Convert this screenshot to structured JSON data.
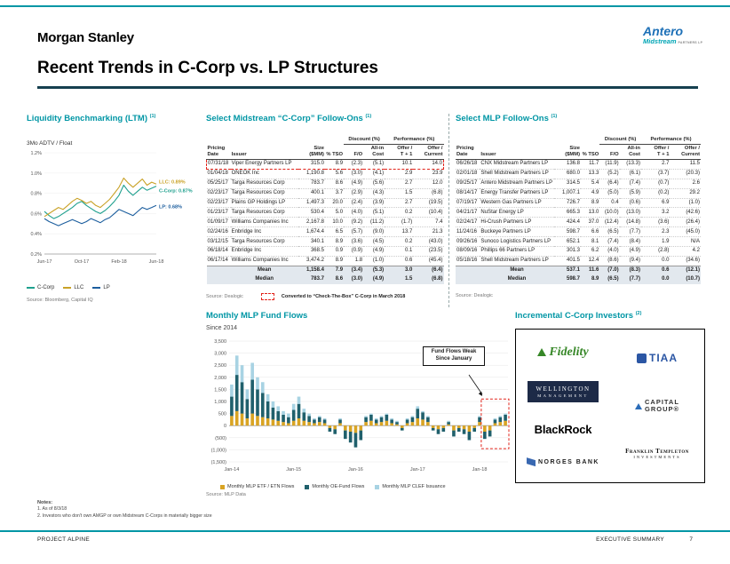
{
  "page": {
    "brand": "Morgan Stanley",
    "logo": {
      "name": "Antero",
      "sub": "Midstream",
      "sub2": "PARTNERS LP"
    },
    "title": "Recent Trends in C-Corp vs. LP Structures",
    "notes": {
      "heading": "Notes:",
      "items": [
        "1.   As of 8/3/18",
        "2.   Investors who don't own AMGP or own Midstream C-Corps in materially bigger size"
      ]
    },
    "footer": {
      "left": "PROJECT ALPINE",
      "right": "EXECUTIVE SUMMARY",
      "page_number": "7"
    }
  },
  "liquidity": {
    "title": "Liquidity Benchmarking (LTM)",
    "title_sup": "(1)",
    "subtitle": "3Mo ADTV / Float",
    "source": "Source: Bloomberg, Capital IQ",
    "chart_data": {
      "type": "line",
      "ylabel": "3Mo ADTV / Float",
      "ylim": [
        0.2,
        1.2
      ],
      "yticks": [
        {
          "value": 1.2,
          "label": "1.2%"
        },
        {
          "value": 1.0,
          "label": "1.0%"
        },
        {
          "value": 0.8,
          "label": "0.8%"
        },
        {
          "value": 0.6,
          "label": "0.6%"
        },
        {
          "value": 0.4,
          "label": "0.4%"
        },
        {
          "value": 0.2,
          "label": "0.2%"
        }
      ],
      "xticks": [
        {
          "pos": 0,
          "label": "Jun-17"
        },
        {
          "pos": 0.333,
          "label": "Oct-17"
        },
        {
          "pos": 0.667,
          "label": "Feb-18"
        },
        {
          "pos": 1,
          "label": "Jun-18"
        }
      ],
      "series": [
        {
          "name": "C-Corp",
          "color": "#1FA08E",
          "values": [
            0.62,
            0.58,
            0.55,
            0.57,
            0.6,
            0.63,
            0.66,
            0.7,
            0.72,
            0.68,
            0.65,
            0.62,
            0.6,
            0.63,
            0.67,
            0.72,
            0.78,
            0.88,
            0.82,
            0.78,
            0.82,
            0.86,
            0.83,
            0.85,
            0.87
          ]
        },
        {
          "name": "LLC",
          "color": "#C9A227",
          "values": [
            0.57,
            0.6,
            0.63,
            0.66,
            0.64,
            0.68,
            0.72,
            0.75,
            0.73,
            0.7,
            0.72,
            0.68,
            0.66,
            0.7,
            0.74,
            0.8,
            0.86,
            0.95,
            0.9,
            0.86,
            0.9,
            0.94,
            0.88,
            0.91,
            0.89
          ]
        },
        {
          "name": "LP",
          "color": "#1C5E9E",
          "values": [
            0.55,
            0.52,
            0.5,
            0.48,
            0.5,
            0.52,
            0.54,
            0.52,
            0.5,
            0.52,
            0.55,
            0.53,
            0.51,
            0.54,
            0.56,
            0.6,
            0.64,
            0.62,
            0.6,
            0.58,
            0.62,
            0.66,
            0.64,
            0.66,
            0.68
          ]
        }
      ],
      "end_labels": [
        {
          "text": "LLC: 0.89%",
          "value": 0.89,
          "dy": -1,
          "color": "#C9A227"
        },
        {
          "text": "C-Corp: 0.87%",
          "value": 0.87,
          "dy": 7,
          "color": "#1FA08E"
        },
        {
          "text": "LP: 0.68%",
          "value": 0.68,
          "dy": 3,
          "color": "#1C5E9E"
        }
      ]
    }
  },
  "ccorp_table": {
    "title": "Select Midstream “C-Corp” Follow-Ons",
    "title_sup": "(1)",
    "group_headers": [
      "Discount (%)",
      "Performance (%)"
    ],
    "columns": [
      "Pricing\nDate",
      "Issuer",
      "Size\n($MM)",
      "% TSO",
      "F/O",
      "All-in\nCost",
      "Offer /\nT + 1",
      "Offer /\nCurrent"
    ],
    "rows": [
      {
        "highlight": true,
        "cells": [
          "07/31/18",
          "Viper Energy Partners LP",
          "315.0",
          "8.9",
          "(2.3)",
          "(5.1)",
          "10.1",
          "14.0"
        ]
      },
      {
        "cells": [
          "01/04/18",
          "ONEOK Inc",
          "1,190.8",
          "5.6",
          "(3.0)",
          "(4.1)",
          "2.9",
          "23.9"
        ]
      },
      {
        "cells": [
          "05/25/17",
          "Targa Resources Corp",
          "783.7",
          "8.6",
          "(4.9)",
          "(5.6)",
          "2.7",
          "12.0"
        ]
      },
      {
        "cells": [
          "02/23/17",
          "Targa Resources Corp",
          "400.1",
          "3.7",
          "(2.9)",
          "(4.3)",
          "1.5",
          "(6.8)"
        ]
      },
      {
        "cells": [
          "02/23/17",
          "Plains GP Holdings LP",
          "1,497.3",
          "20.0",
          "(2.4)",
          "(3.9)",
          "2.7",
          "(19.5)"
        ]
      },
      {
        "cells": [
          "01/23/17",
          "Targa Resources Corp",
          "530.4",
          "5.0",
          "(4.0)",
          "(5.1)",
          "0.2",
          "(10.4)"
        ]
      },
      {
        "cells": [
          "01/09/17",
          "Williams Companies Inc",
          "2,167.8",
          "10.0",
          "(9.2)",
          "(11.2)",
          "(1.7)",
          "7.4"
        ]
      },
      {
        "cells": [
          "02/24/16",
          "Enbridge Inc",
          "1,674.4",
          "6.5",
          "(5.7)",
          "(9.0)",
          "13.7",
          "21.3"
        ]
      },
      {
        "cells": [
          "03/12/15",
          "Targa Resources Corp",
          "340.1",
          "8.9",
          "(3.6)",
          "(4.5)",
          "0.2",
          "(43.0)"
        ]
      },
      {
        "cells": [
          "06/18/14",
          "Enbridge Inc",
          "368.5",
          "0.9",
          "(0.9)",
          "(4.9)",
          "0.1",
          "(23.5)"
        ]
      },
      {
        "cells": [
          "06/17/14",
          "Williams Companies Inc",
          "3,474.2",
          "8.9",
          "1.8",
          "(1.0)",
          "0.6",
          "(45.4)"
        ]
      }
    ],
    "summary": [
      {
        "cells": [
          "",
          "Mean",
          "1,158.4",
          "7.9",
          "(3.4)",
          "(5.3)",
          "3.0",
          "(6.4)"
        ]
      },
      {
        "cells": [
          "",
          "Median",
          "783.7",
          "8.6",
          "(3.0)",
          "(4.9)",
          "1.5",
          "(6.8)"
        ]
      }
    ],
    "source": "Source: Dealogic",
    "callout": "Converted to “Check-The-Box” C-Corp in March 2018"
  },
  "mlp_table": {
    "title": "Select MLP Follow-Ons",
    "title_sup": "(1)",
    "group_headers": [
      "Discount (%)",
      "Performance (%)"
    ],
    "columns": [
      "Pricing\nDate",
      "Issuer",
      "Size\n($MM)",
      "% TSO",
      "F/O",
      "All-in\nCost",
      "Offer /\nT + 1",
      "Offer /\nCurrent"
    ],
    "rows": [
      {
        "cells": [
          "06/26/18",
          "CNX Midstream Partners LP",
          "136.8",
          "11.7",
          "(11.9)",
          "(13.3)",
          "2.7",
          "11.5"
        ]
      },
      {
        "cells": [
          "02/01/18",
          "Shell Midstream Partners LP",
          "680.0",
          "13.3",
          "(5.2)",
          "(6.1)",
          "(3.7)",
          "(20.3)"
        ]
      },
      {
        "cells": [
          "09/25/17",
          "Antero Midstream Partners LP",
          "314.5",
          "5.4",
          "(6.4)",
          "(7.4)",
          "(0.7)",
          "2.6"
        ]
      },
      {
        "cells": [
          "08/14/17",
          "Energy Transfer Partners LP",
          "1,007.1",
          "4.9",
          "(5.0)",
          "(5.9)",
          "(0.2)",
          "29.2"
        ]
      },
      {
        "cells": [
          "07/19/17",
          "Western Gas Partners LP",
          "726.7",
          "8.9",
          "0.4",
          "(0.6)",
          "6.9",
          "(1.0)"
        ]
      },
      {
        "cells": [
          "04/21/17",
          "NuStar Energy LP",
          "665.3",
          "13.0",
          "(10.0)",
          "(13.0)",
          "3.2",
          "(42.6)"
        ]
      },
      {
        "cells": [
          "02/24/17",
          "Hi-Crush Partners LP",
          "424.4",
          "37.0",
          "(12.4)",
          "(14.8)",
          "(3.6)",
          "(26.4)"
        ]
      },
      {
        "cells": [
          "11/24/16",
          "Buckeye Partners LP",
          "598.7",
          "6.6",
          "(6.5)",
          "(7.7)",
          "2.3",
          "(45.0)"
        ]
      },
      {
        "cells": [
          "09/26/16",
          "Sunoco Logistics Partners LP",
          "652.1",
          "8.1",
          "(7.4)",
          "(8.4)",
          "1.9",
          "N/A"
        ]
      },
      {
        "cells": [
          "08/09/16",
          "Phillips 66 Partners LP",
          "301.3",
          "6.2",
          "(4.0)",
          "(4.9)",
          "(2.8)",
          "4.2"
        ]
      },
      {
        "cells": [
          "05/18/16",
          "Shell Midstream Partners LP",
          "401.5",
          "12.4",
          "(8.6)",
          "(9.4)",
          "0.0",
          "(34.6)"
        ]
      }
    ],
    "summary": [
      {
        "cells": [
          "",
          "Mean",
          "537.1",
          "11.6",
          "(7.0)",
          "(8.3)",
          "0.6",
          "(12.1)"
        ]
      },
      {
        "cells": [
          "",
          "Median",
          "598.7",
          "8.9",
          "(6.5)",
          "(7.7)",
          "0.0",
          "(10.7)"
        ]
      }
    ],
    "source": "Source: Dealogic"
  },
  "fund_flows": {
    "title": "Monthly MLP Fund Flows",
    "subtitle": "Since 2014",
    "source": "Source: MLP Data",
    "annotation": "Fund Flows Weak Since January",
    "chart_data": {
      "type": "bar",
      "stacked": true,
      "months": 54,
      "x_start": "Jan-14",
      "ylim": [
        -1500,
        3500
      ],
      "yticks": [
        {
          "value": 3500,
          "label": "3,500"
        },
        {
          "value": 3000,
          "label": "3,000"
        },
        {
          "value": 2500,
          "label": "2,500"
        },
        {
          "value": 2000,
          "label": "2,000"
        },
        {
          "value": 1500,
          "label": "1,500"
        },
        {
          "value": 1000,
          "label": "1,000"
        },
        {
          "value": 500,
          "label": "500"
        },
        {
          "value": 0,
          "label": "0"
        },
        {
          "value": -500,
          "label": "(500)"
        },
        {
          "value": -1000,
          "label": "(1,000)"
        },
        {
          "value": -1500,
          "label": "(1,500)"
        }
      ],
      "xticks": [
        {
          "index": 0,
          "label": "Jan-14"
        },
        {
          "index": 12,
          "label": "Jan-15"
        },
        {
          "index": 24,
          "label": "Jan-16"
        },
        {
          "index": 36,
          "label": "Jan-17"
        },
        {
          "index": 48,
          "label": "Jan-18"
        }
      ],
      "series": [
        {
          "name": "Monthly MLP ETF / ETN Flows",
          "color": "#D9A423",
          "values": [
            400,
            600,
            500,
            300,
            500,
            400,
            350,
            300,
            250,
            200,
            150,
            100,
            200,
            300,
            200,
            150,
            100,
            150,
            100,
            -100,
            -150,
            100,
            -200,
            -250,
            -300,
            -200,
            150,
            200,
            100,
            150,
            200,
            100,
            50,
            -100,
            100,
            150,
            300,
            250,
            150,
            -100,
            -150,
            -100,
            50,
            -200,
            -100,
            -150,
            -250,
            -100,
            150,
            -250,
            -200,
            100,
            150,
            200
          ]
        },
        {
          "name": "Monthly OE-Fund Flows",
          "color": "#20606C",
          "values": [
            800,
            1500,
            1300,
            800,
            1400,
            1100,
            1000,
            700,
            500,
            400,
            300,
            250,
            450,
            600,
            350,
            250,
            150,
            200,
            150,
            -150,
            -200,
            150,
            -350,
            -450,
            -600,
            -400,
            200,
            250,
            150,
            200,
            250,
            150,
            100,
            -100,
            150,
            200,
            400,
            300,
            200,
            -100,
            -200,
            -150,
            100,
            -250,
            -150,
            -200,
            -350,
            -150,
            200,
            -300,
            -250,
            150,
            200,
            250
          ]
        },
        {
          "name": "Monthly MLP CLEF Issuance",
          "color": "#A8D3E3",
          "values": [
            500,
            800,
            700,
            400,
            700,
            500,
            450,
            300,
            250,
            200,
            150,
            150,
            250,
            300,
            150,
            100,
            50,
            50,
            50,
            0,
            0,
            50,
            0,
            0,
            0,
            0,
            50,
            50,
            50,
            50,
            50,
            50,
            50,
            0,
            50,
            50,
            100,
            50,
            50,
            0,
            0,
            0,
            50,
            0,
            0,
            0,
            0,
            0,
            50,
            0,
            0,
            50,
            50,
            50
          ]
        }
      ],
      "highlight": {
        "start_index": 49,
        "end_index": 53,
        "y_top": 1100,
        "y_bottom": -950
      }
    }
  },
  "investors": {
    "title": "Incremental C-Corp Investors",
    "title_sup": "(2)",
    "logos": {
      "fidelity": "Fidelity",
      "tiaa": "TIAA",
      "wellington1": "WELLINGTON",
      "wellington2": "MANAGEMENT",
      "capital1": "CAPITAL",
      "capital2": "GROUP®",
      "blackrock": "BlackRock",
      "norges": "NORGES BANK",
      "franklin1": "Franklin Templeton",
      "franklin2": "INVESTMENTS"
    }
  }
}
